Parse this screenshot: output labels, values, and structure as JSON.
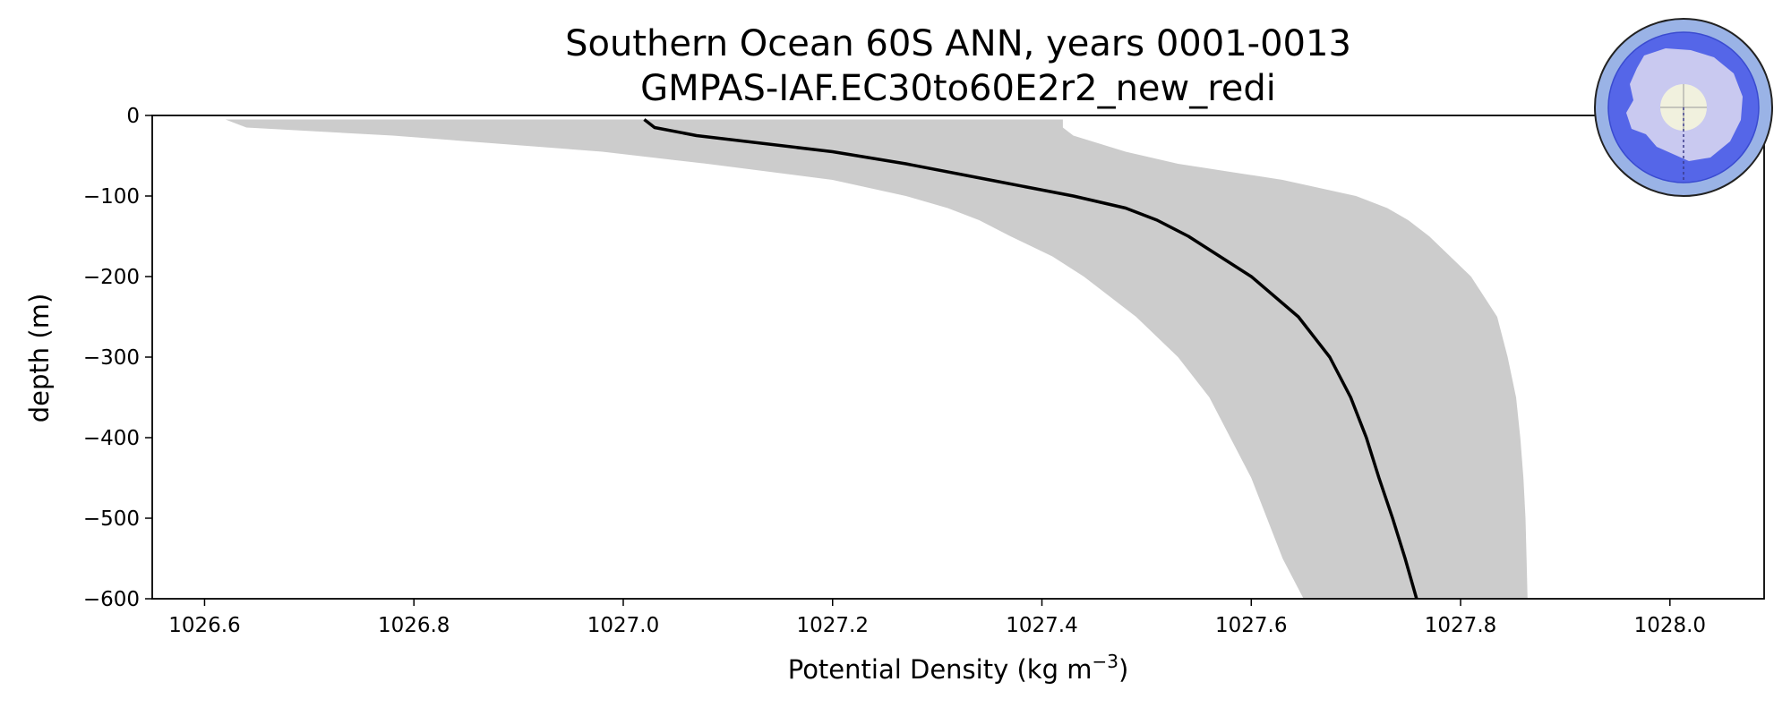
{
  "chart_data": {
    "type": "line",
    "title": "Southern Ocean 60S ANN, years 0001-0013",
    "subtitle": "GMPAS-IAF.EC30to60E2r2_new_redi",
    "xlabel": "Potential Density (kg m",
    "xlabel_exponent": "−3",
    "xlabel_suffix": ")",
    "ylabel": "depth (m)",
    "xlim": [
      1026.55,
      1028.09
    ],
    "ylim": [
      -600,
      0
    ],
    "xticks": [
      1026.6,
      1026.8,
      1027.0,
      1027.2,
      1027.4,
      1027.6,
      1027.8,
      1028.0
    ],
    "xtick_labels": [
      "1026.6",
      "1026.8",
      "1027.0",
      "1027.2",
      "1027.4",
      "1027.6",
      "1027.8",
      "1028.0"
    ],
    "yticks": [
      0,
      -100,
      -200,
      -300,
      -400,
      -500,
      -600
    ],
    "ytick_labels": [
      "0",
      "−100",
      "−200",
      "−300",
      "−400",
      "−500",
      "−600"
    ],
    "grid": false,
    "series": [
      {
        "style": "line",
        "color": "#000000",
        "depth": [
          -5,
          -15,
          -25,
          -45,
          -60,
          -80,
          -100,
          -115,
          -130,
          -150,
          -175,
          -200,
          -250,
          -300,
          -350,
          -400,
          -450,
          -500,
          -550,
          -600
        ],
        "values": [
          1027.02,
          1027.03,
          1027.07,
          1027.2,
          1027.27,
          1027.35,
          1027.43,
          1027.48,
          1027.51,
          1027.54,
          1027.57,
          1027.6,
          1027.645,
          1027.675,
          1027.695,
          1027.71,
          1027.722,
          1027.735,
          1027.747,
          1027.758
        ]
      },
      {
        "style": "band",
        "color": "#cccccc",
        "depth": [
          -5,
          -15,
          -25,
          -45,
          -60,
          -80,
          -100,
          -115,
          -130,
          -150,
          -175,
          -200,
          -250,
          -300,
          -350,
          -400,
          -450,
          -500,
          -550,
          -600
        ],
        "lower": [
          1026.62,
          1026.64,
          1026.78,
          1026.98,
          1027.08,
          1027.2,
          1027.27,
          1027.31,
          1027.34,
          1027.37,
          1027.41,
          1027.44,
          1027.49,
          1027.53,
          1027.56,
          1027.58,
          1027.6,
          1027.615,
          1027.63,
          1027.65
        ],
        "upper": [
          1027.42,
          1027.42,
          1027.43,
          1027.48,
          1027.53,
          1027.63,
          1027.7,
          1027.73,
          1027.75,
          1027.77,
          1027.79,
          1027.81,
          1027.835,
          1027.845,
          1027.853,
          1027.857,
          1027.86,
          1027.862,
          1027.863,
          1027.864
        ]
      }
    ]
  },
  "inset_map": {
    "icon": "antarctica-polar-map-icon",
    "ocean_color": "#5566e8",
    "ring_color": "#9ab3e6",
    "land_color": "#c9c9f0",
    "pole_color": "#f1f1de"
  }
}
